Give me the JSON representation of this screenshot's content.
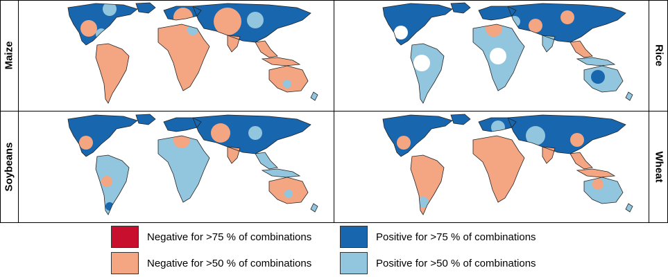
{
  "colors": {
    "neg75": "#c8102e",
    "neg50": "#f4a582",
    "pos75": "#1866ae",
    "pos50": "#92c5de",
    "coast": "#222222"
  },
  "panels": [
    {
      "crop": "Maize",
      "side": "left",
      "pattern": "maize"
    },
    {
      "crop": "Rice",
      "side": "right",
      "pattern": "rice"
    },
    {
      "crop": "Soybeans",
      "side": "left",
      "pattern": "soy"
    },
    {
      "crop": "Wheat",
      "side": "right",
      "pattern": "wheat"
    }
  ],
  "legend": [
    {
      "label": "Negative for >75 % of combinations",
      "color": "#c8102e"
    },
    {
      "label": "Positive for >75 % of combinations",
      "color": "#1866ae"
    },
    {
      "label": "Negative for >50 % of combinations",
      "color": "#f4a582"
    },
    {
      "label": "Positive for >50 % of combinations",
      "color": "#92c5de"
    }
  ]
}
